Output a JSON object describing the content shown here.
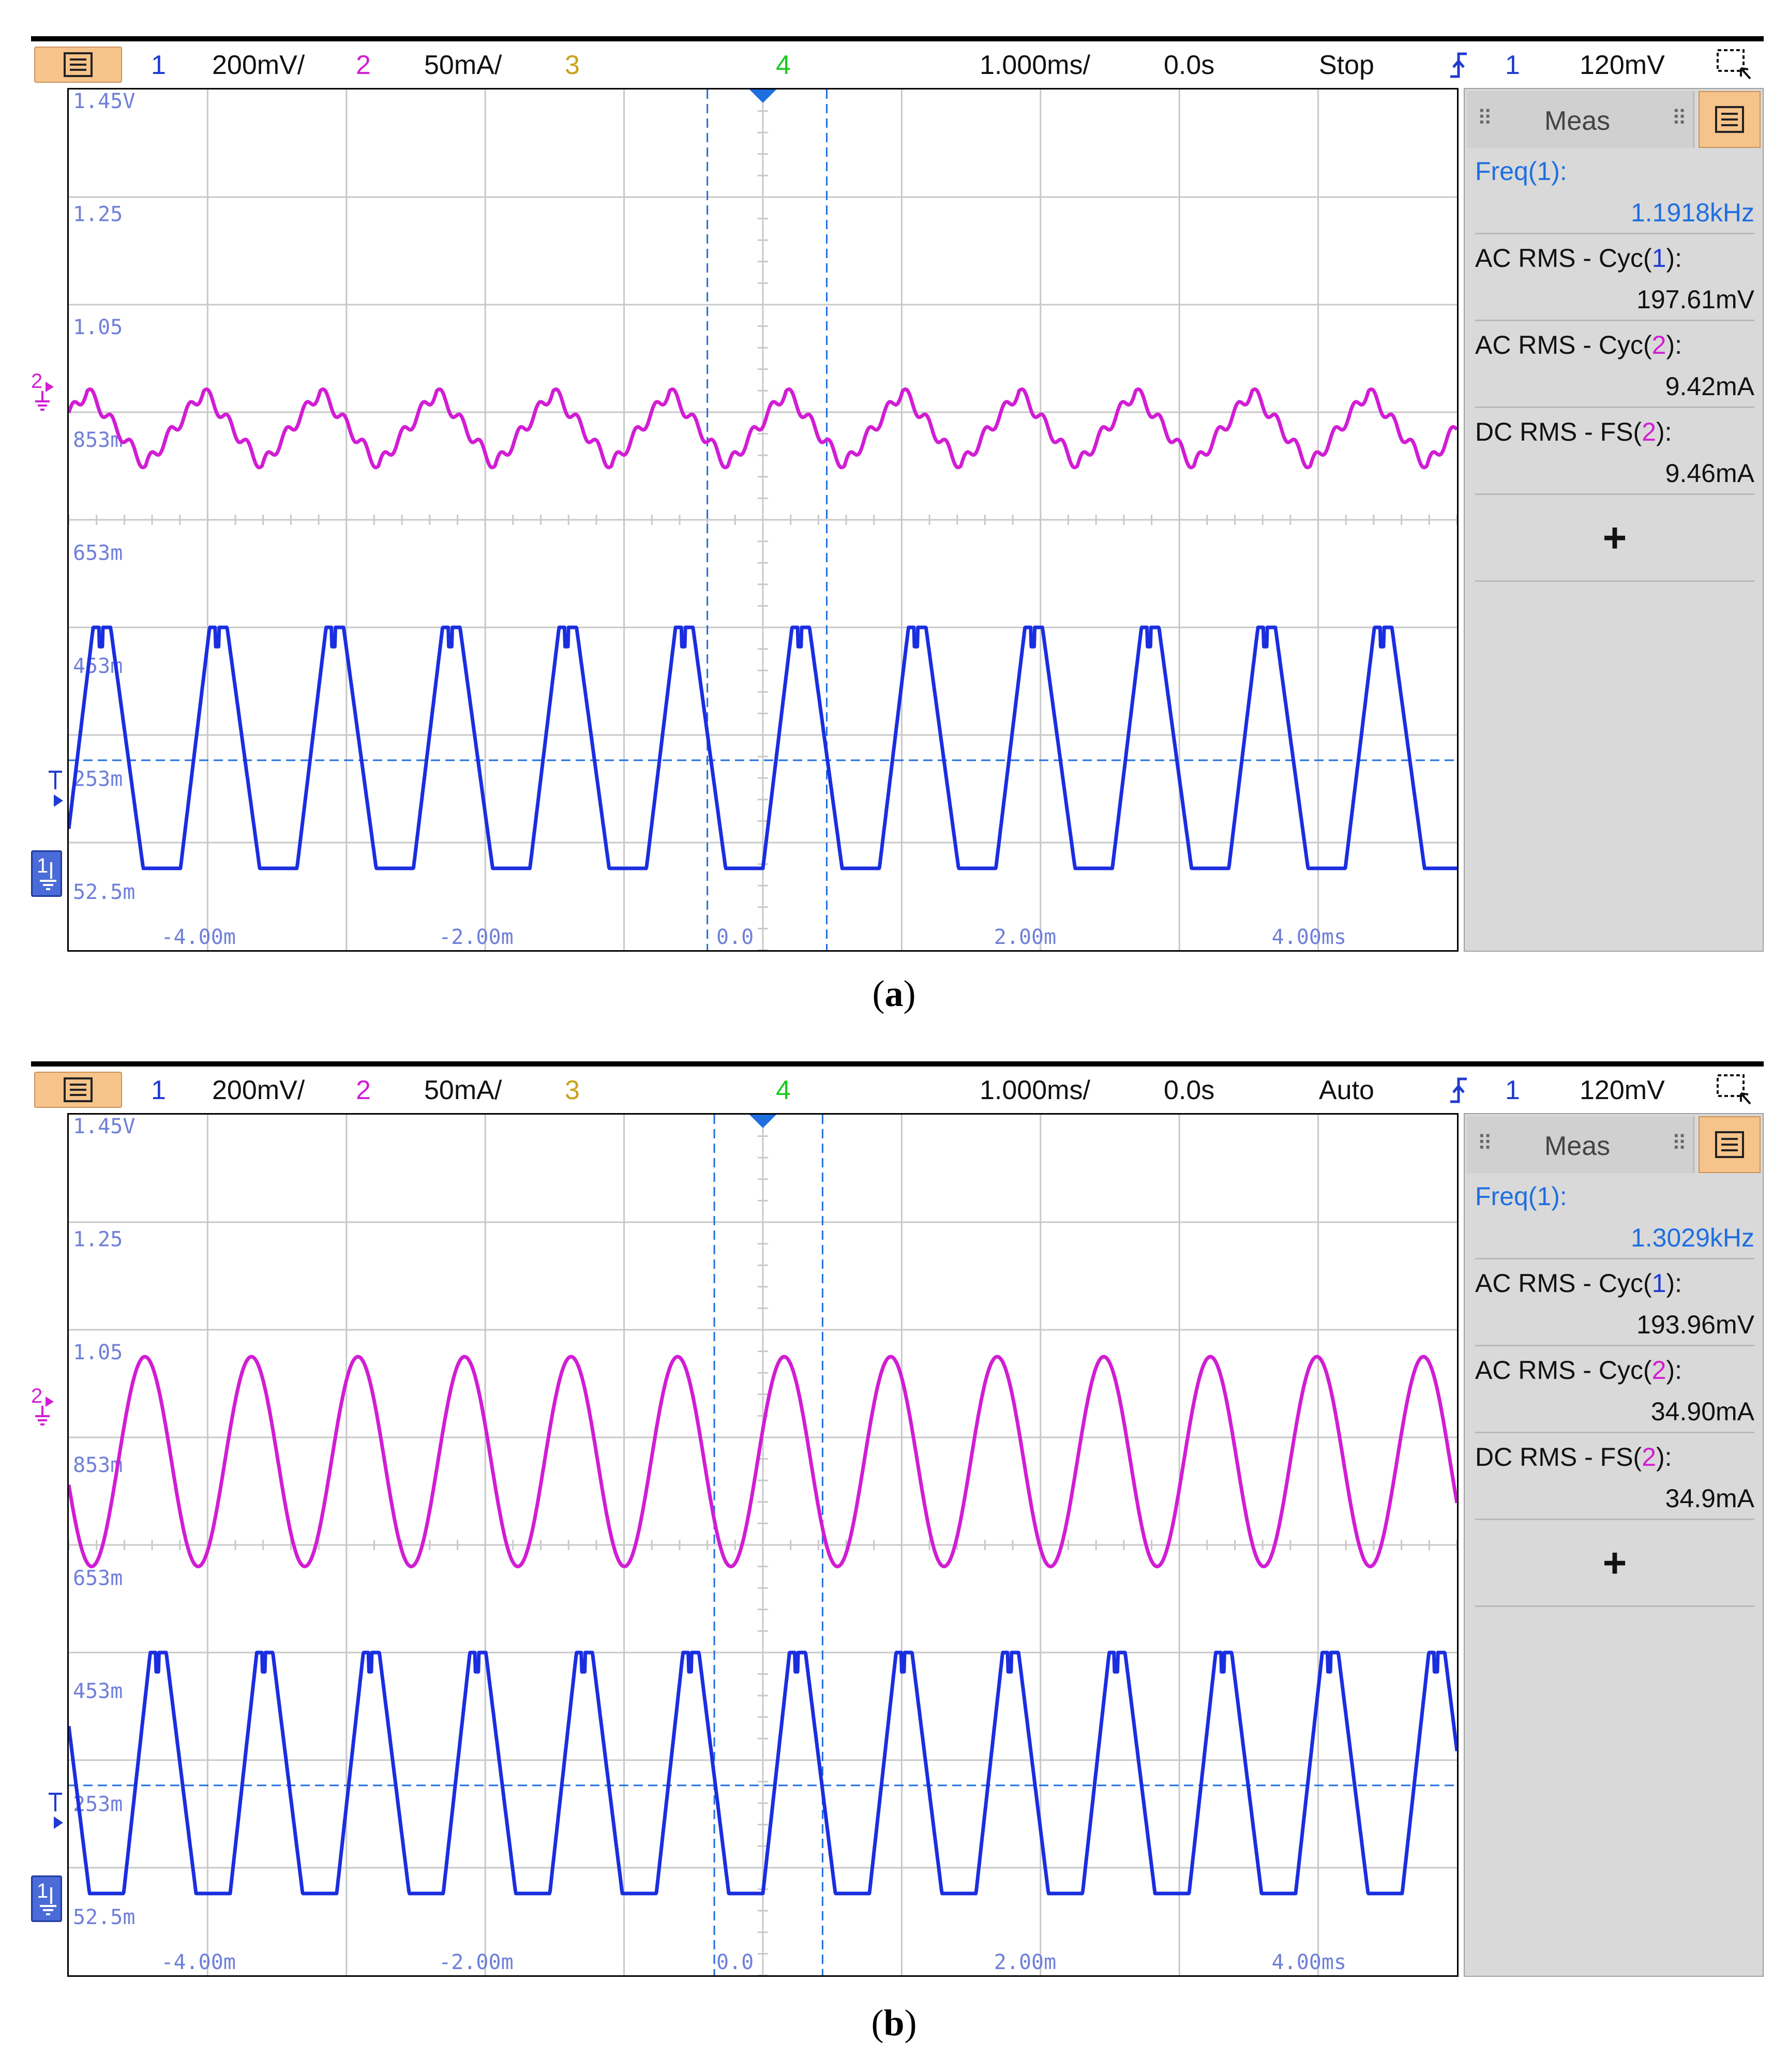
{
  "panels": [
    {
      "id": "a",
      "caption_letter": "a",
      "toolbar": {
        "ch1_label": "1",
        "ch1_scale": "200mV/",
        "ch2_label": "2",
        "ch2_scale": "50mA/",
        "ch3_label": "3",
        "ch4_label": "4",
        "timebase": "1.000ms/",
        "delay": "0.0s",
        "run_state": "Stop",
        "trigger_source": "1",
        "trigger_level": "120mV"
      },
      "meas": {
        "tab_label": "Meas",
        "items": [
          {
            "name_pre": "Freq(",
            "ch": "1",
            "name_post": "):",
            "value": "1.1918kHz",
            "color": "#1f6fe0"
          },
          {
            "name_pre": "AC RMS - Cyc(",
            "ch": "1",
            "name_post": "):",
            "value": "197.61mV",
            "color": "#111111"
          },
          {
            "name_pre": "AC RMS - Cyc(",
            "ch": "2",
            "name_post": "):",
            "value": "9.42mA",
            "color": "#111111"
          },
          {
            "name_pre": "DC RMS - FS(",
            "ch": "2",
            "name_post": "):",
            "value": "9.46mA",
            "color": "#111111"
          }
        ],
        "add_label": "+"
      },
      "chart_data": {
        "type": "line",
        "x_ticks": [
          "-4.00m",
          "-2.00m",
          "0.0",
          "2.00m",
          "4.00ms"
        ],
        "y_ticks": [
          "1.45V",
          "1.25",
          "1.05",
          "853m",
          "653m",
          "453m",
          "253m",
          "52.5m"
        ],
        "xlim_ms": [
          -5.0,
          5.0
        ],
        "ylim_V": [
          -0.1,
          1.5
        ],
        "grid": true,
        "series": [
          {
            "channel": "2",
            "color": "#d11dd4",
            "waveform": "triangle-ripple",
            "frequency_kHz": 1.1918,
            "low_V": 0.8,
            "high_V": 0.94
          },
          {
            "channel": "1",
            "color": "#1a2ee0",
            "waveform": "trapezoid",
            "frequency_kHz": 1.1918,
            "low_V": 0.052,
            "high_V": 0.5
          }
        ],
        "cursors_ms": [
          -0.4,
          0.46
        ],
        "trigger_level_V": 0.253
      }
    },
    {
      "id": "b",
      "caption_letter": "b",
      "toolbar": {
        "ch1_label": "1",
        "ch1_scale": "200mV/",
        "ch2_label": "2",
        "ch2_scale": "50mA/",
        "ch3_label": "3",
        "ch4_label": "4",
        "timebase": "1.000ms/",
        "delay": "0.0s",
        "run_state": "Auto",
        "trigger_source": "1",
        "trigger_level": "120mV"
      },
      "meas": {
        "tab_label": "Meas",
        "items": [
          {
            "name_pre": "Freq(",
            "ch": "1",
            "name_post": "):",
            "value": "1.3029kHz",
            "color": "#1f6fe0"
          },
          {
            "name_pre": "AC RMS - Cyc(",
            "ch": "1",
            "name_post": "):",
            "value": "193.96mV",
            "color": "#111111"
          },
          {
            "name_pre": "AC RMS - Cyc(",
            "ch": "2",
            "name_post": "):",
            "value": "34.90mA",
            "color": "#111111"
          },
          {
            "name_pre": "DC RMS - FS(",
            "ch": "2",
            "name_post": "):",
            "value": "34.9mA",
            "color": "#111111"
          }
        ],
        "add_label": "+"
      },
      "chart_data": {
        "type": "line",
        "x_ticks": [
          "-4.00m",
          "-2.00m",
          "0.0",
          "2.00m",
          "4.00ms"
        ],
        "y_ticks": [
          "1.45V",
          "1.25",
          "1.05",
          "853m",
          "653m",
          "453m",
          "253m",
          "52.5m"
        ],
        "xlim_ms": [
          -5.0,
          5.0
        ],
        "ylim_V": [
          -0.1,
          1.5
        ],
        "grid": true,
        "series": [
          {
            "channel": "2",
            "color": "#d11dd4",
            "waveform": "sine",
            "frequency_kHz": 1.3029,
            "low_V": 0.66,
            "high_V": 1.05
          },
          {
            "channel": "1",
            "color": "#1a2ee0",
            "waveform": "trapezoid",
            "frequency_kHz": 1.3029,
            "low_V": 0.052,
            "high_V": 0.5
          }
        ],
        "cursors_ms": [
          -0.35,
          0.43
        ],
        "trigger_level_V": 0.253
      }
    }
  ]
}
